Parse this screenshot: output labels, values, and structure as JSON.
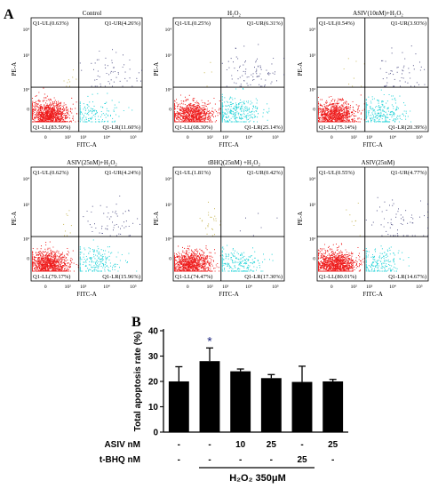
{
  "panel_a": {
    "letter": "A"
  },
  "panel_b": {
    "letter": "B"
  },
  "chart_data": [
    {
      "type": "scatter",
      "title": "Control",
      "xlabel": "FITC-A",
      "ylabel": "PE-A",
      "quadrants": {
        "UL": "Q1-UL(0.63%)",
        "UR": "Q1-UR(4.26%)",
        "LL": "Q1-LL(83.50%)",
        "LR": "Q1-LR(11.60%)"
      },
      "percentages": {
        "UL": 0.63,
        "UR": 4.26,
        "LL": 83.5,
        "LR": 11.6
      },
      "x_ticks": [
        "0",
        "10²",
        "10³",
        "10⁴",
        "10⁵"
      ],
      "y_ticks": [
        "0",
        "10²",
        "10³",
        "10⁴"
      ],
      "colors": {
        "LL": "#ee1c1c",
        "LR": "#22d3d8",
        "UL": "#c8b85a",
        "UR": "#5a5a8c",
        "gate": "#000000"
      }
    },
    {
      "type": "scatter",
      "title": "H₂O₂",
      "xlabel": "FITC-A",
      "ylabel": "PE-A",
      "quadrants": {
        "UL": "Q1-UL(0.25%)",
        "UR": "Q1-UR(6.31%)",
        "LL": "Q1-LL(68.30%)",
        "LR": "Q1-LR(25.14%)"
      },
      "percentages": {
        "UL": 0.25,
        "UR": 6.31,
        "LL": 68.3,
        "LR": 25.14
      },
      "x_ticks": [
        "0",
        "10²",
        "10³",
        "10⁴",
        "10⁵"
      ],
      "y_ticks": [
        "0",
        "10²",
        "10³",
        "10⁴"
      ]
    },
    {
      "type": "scatter",
      "title": "ASIV(10nM)+H₂O₂",
      "xlabel": "FITC-A",
      "ylabel": "PE-A",
      "quadrants": {
        "UL": "Q1-UL(0.54%)",
        "UR": "Q1-UR(3.93%)",
        "LL": "Q1-LL(75.14%)",
        "LR": "Q1-LR(20.39%)"
      },
      "percentages": {
        "UL": 0.54,
        "UR": 3.93,
        "LL": 75.14,
        "LR": 20.39
      },
      "x_ticks": [
        "0",
        "10²",
        "10³",
        "10⁴",
        "10⁵"
      ],
      "y_ticks": [
        "0",
        "10²",
        "10³",
        "10⁴"
      ]
    },
    {
      "type": "scatter",
      "title": "ASIV(25nM)+H₂O₂",
      "xlabel": "FITC-A",
      "ylabel": "PE-A",
      "quadrants": {
        "UL": "Q1-UL(0.62%)",
        "UR": "Q1-UR(4.24%)",
        "LL": "Q1-LL(79.17%)",
        "LR": "Q1-LR(15.96%)"
      },
      "percentages": {
        "UL": 0.62,
        "UR": 4.24,
        "LL": 79.17,
        "LR": 15.96
      },
      "x_ticks": [
        "0",
        "10²",
        "10³",
        "10⁴",
        "10⁵"
      ],
      "y_ticks": [
        "0",
        "10²",
        "10³",
        "10⁴"
      ]
    },
    {
      "type": "scatter",
      "title": "tBHQ(25nM) +H₂O₂",
      "xlabel": "FITC-A",
      "ylabel": "PE-A",
      "quadrants": {
        "UL": "Q1-UL(1.81%)",
        "UR": "Q1-UR(0.42%)",
        "LL": "Q1-LL(74.47%)",
        "LR": "Q1-LR(17.30%)"
      },
      "percentages": {
        "UL": 1.81,
        "UR": 0.42,
        "LL": 74.47,
        "LR": 17.3
      },
      "x_ticks": [
        "0",
        "10²",
        "10³",
        "10⁴",
        "10⁵"
      ],
      "y_ticks": [
        "0",
        "10²",
        "10³",
        "10⁴"
      ]
    },
    {
      "type": "scatter",
      "title": "ASIV(25nM)",
      "xlabel": "FITC-A",
      "ylabel": "PE-A",
      "quadrants": {
        "UL": "Q1-UL(0.55%)",
        "UR": "Q1-UR(4.77%)",
        "LL": "Q1-LL(80.01%)",
        "LR": "Q1-LR(14.67%)"
      },
      "percentages": {
        "UL": 0.55,
        "UR": 4.77,
        "LL": 80.01,
        "LR": 14.67
      },
      "x_ticks": [
        "0",
        "10²",
        "10³",
        "10⁴",
        "10⁵"
      ],
      "y_ticks": [
        "0",
        "10²",
        "10³",
        "10⁴"
      ]
    },
    {
      "type": "bar",
      "ylabel": "Total apoptosis rate (%)",
      "ylim": [
        0,
        40
      ],
      "yticks": [
        0,
        10,
        20,
        30,
        40
      ],
      "values": [
        20,
        28,
        24,
        21.3,
        19.8,
        20
      ],
      "errors": [
        5.8,
        5.2,
        0.9,
        1.4,
        6.2,
        0.8
      ],
      "significance": [
        "",
        "*",
        "",
        "",
        "",
        ""
      ],
      "bar_color": "#000000",
      "asterisk_color": "#1a237e",
      "treatment_rows": [
        {
          "label": "ASIV nM",
          "values": [
            "-",
            "-",
            "10",
            "25",
            "-",
            "25"
          ]
        },
        {
          "label": "t-BHQ nM",
          "values": [
            "-",
            "-",
            "-",
            "-",
            "25",
            "-"
          ]
        }
      ],
      "h2o2_label": "H₂O₂ 350μM"
    }
  ]
}
